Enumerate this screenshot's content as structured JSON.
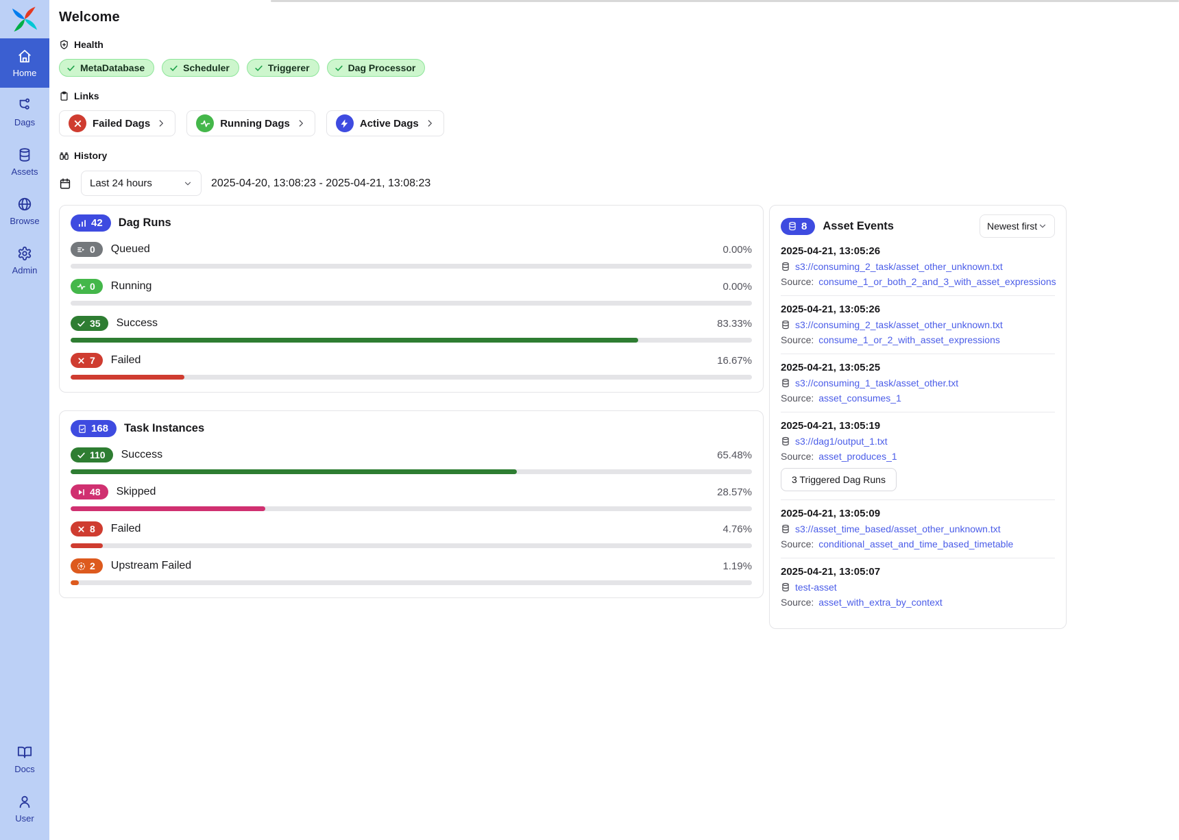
{
  "app": {
    "name": "Airflow",
    "logo_icon": "airflow-pinwheel-logo"
  },
  "colors": {
    "sidebar_bg": "#bcd0f6",
    "sidebar_active": "#3b5fd1",
    "sidebar_text": "#27379c",
    "accent_blue": "#3e4be0",
    "link_blue": "#4a5ce8",
    "success_green": "#2e7d32",
    "running_green": "#44b74a",
    "failed_red": "#cf3c30",
    "skipped_pink": "#d03070",
    "upstream_orange": "#dd5a1e",
    "queued_gray": "#74787c",
    "health_badge_bg": "#cdf6cd",
    "health_badge_border": "#8ee59a",
    "health_check": "#1fa24a",
    "card_border": "#e4e4e7",
    "bar_track": "#e4e4e7"
  },
  "sidebar": {
    "items": [
      {
        "label": "Home",
        "icon": "home-icon",
        "active": true
      },
      {
        "label": "Dags",
        "icon": "dags-icon",
        "active": false
      },
      {
        "label": "Assets",
        "icon": "assets-icon",
        "active": false
      },
      {
        "label": "Browse",
        "icon": "browse-icon",
        "active": false
      },
      {
        "label": "Admin",
        "icon": "admin-icon",
        "active": false
      }
    ],
    "bottom_items": [
      {
        "label": "Docs",
        "icon": "docs-icon",
        "active": false
      },
      {
        "label": "User",
        "icon": "user-icon",
        "active": false
      }
    ]
  },
  "header": {
    "title": "Welcome"
  },
  "health": {
    "label": "Health",
    "icon": "shield-plus-icon",
    "badge_icon": "check-icon",
    "badges": [
      "MetaDatabase",
      "Scheduler",
      "Triggerer",
      "Dag Processor"
    ]
  },
  "links": {
    "label": "Links",
    "icon": "clipboard-icon",
    "buttons": [
      {
        "label": "Failed Dags",
        "icon": "failed-dags-icon",
        "circle_color": "#cf3c30",
        "glyph": "x"
      },
      {
        "label": "Running Dags",
        "icon": "running-dags-icon",
        "circle_color": "#44b74a",
        "glyph": "pulse"
      },
      {
        "label": "Active Dags",
        "icon": "active-dags-icon",
        "circle_color": "#3e4be0",
        "glyph": "zap"
      }
    ]
  },
  "history": {
    "label": "History",
    "icon": "binoculars-icon",
    "calendar_icon": "calendar-icon",
    "range_selected": "Last 24 hours",
    "range_text": "2025-04-20, 13:08:23 - 2025-04-21, 13:08:23"
  },
  "dag_runs": {
    "title": "Dag Runs",
    "total": "42",
    "icon": "bar-chart-icon",
    "rows": [
      {
        "label": "Queued",
        "count": "0",
        "percent": "0.00%",
        "value": 0,
        "color": "#74787c",
        "icon": "queued-icon"
      },
      {
        "label": "Running",
        "count": "0",
        "percent": "0.00%",
        "value": 0,
        "color": "#44b74a",
        "icon": "running-pulse-icon"
      },
      {
        "label": "Success",
        "count": "35",
        "percent": "83.33%",
        "value": 83.33,
        "color": "#2e7d32",
        "icon": "check-icon"
      },
      {
        "label": "Failed",
        "count": "7",
        "percent": "16.67%",
        "value": 16.67,
        "color": "#cf3c30",
        "icon": "x-icon"
      }
    ]
  },
  "task_instances": {
    "title": "Task Instances",
    "total": "168",
    "icon": "task-doc-icon",
    "rows": [
      {
        "label": "Success",
        "count": "110",
        "percent": "65.48%",
        "value": 65.48,
        "color": "#2e7d32",
        "icon": "check-icon"
      },
      {
        "label": "Skipped",
        "count": "48",
        "percent": "28.57%",
        "value": 28.57,
        "color": "#d03070",
        "icon": "skip-icon"
      },
      {
        "label": "Failed",
        "count": "8",
        "percent": "4.76%",
        "value": 4.76,
        "color": "#cf3c30",
        "icon": "x-icon"
      },
      {
        "label": "Upstream Failed",
        "count": "2",
        "percent": "1.19%",
        "value": 1.19,
        "color": "#dd5a1e",
        "icon": "upstream-failed-icon"
      }
    ]
  },
  "asset_events": {
    "title": "Asset Events",
    "total": "8",
    "icon": "database-icon",
    "sort_selected": "Newest first",
    "source_label": "Source:",
    "events": [
      {
        "timestamp": "2025-04-21, 13:05:26",
        "uri": "s3://consuming_2_task/asset_other_unknown.txt",
        "source": "consume_1_or_both_2_and_3_with_asset_expressions"
      },
      {
        "timestamp": "2025-04-21, 13:05:26",
        "uri": "s3://consuming_2_task/asset_other_unknown.txt",
        "source": "consume_1_or_2_with_asset_expressions"
      },
      {
        "timestamp": "2025-04-21, 13:05:25",
        "uri": "s3://consuming_1_task/asset_other.txt",
        "source": "asset_consumes_1"
      },
      {
        "timestamp": "2025-04-21, 13:05:19",
        "uri": "s3://dag1/output_1.txt",
        "source": "asset_produces_1",
        "extra_button": "3 Triggered Dag Runs"
      },
      {
        "timestamp": "2025-04-21, 13:05:09",
        "uri": "s3://asset_time_based/asset_other_unknown.txt",
        "source": "conditional_asset_and_time_based_timetable"
      },
      {
        "timestamp": "2025-04-21, 13:05:07",
        "uri": "test-asset",
        "source": "asset_with_extra_by_context"
      }
    ]
  }
}
